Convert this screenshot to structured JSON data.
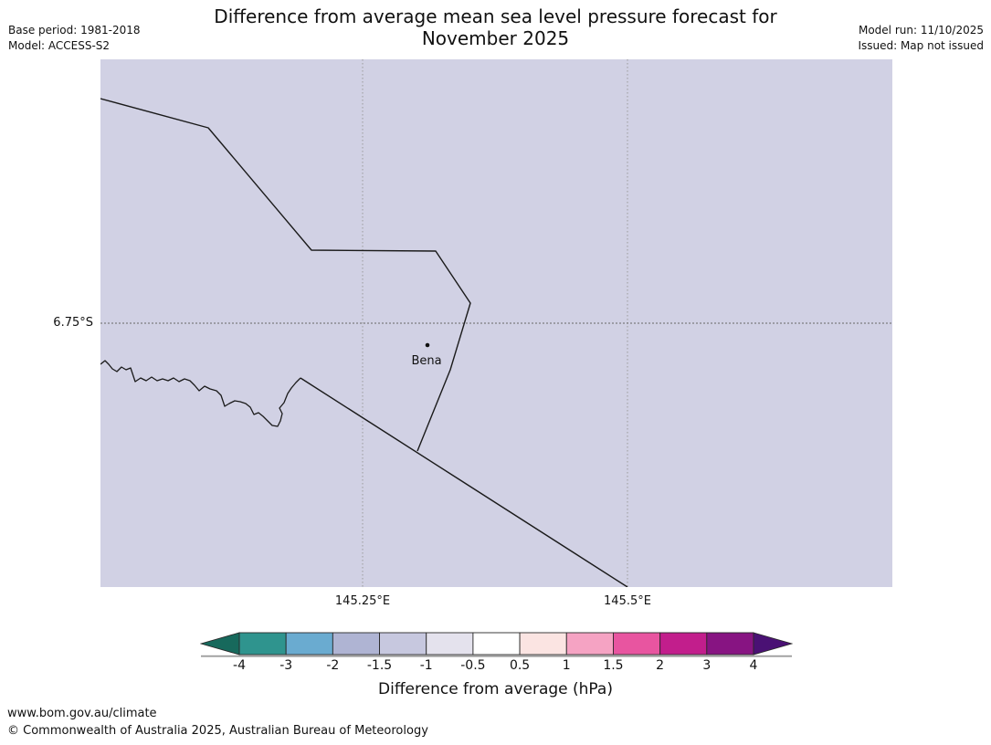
{
  "header": {
    "title_line1": "Difference from average mean sea level pressure forecast for",
    "title_line2": "November 2025",
    "base_period": "Base period: 1981-2018",
    "model": "Model: ACCESS-S2",
    "model_run": "Model run: 11/10/2025",
    "issued": "Issued: Map not issued"
  },
  "map": {
    "background_color": "#d1d1e4",
    "place_label": "Bena",
    "lat_label": "6.75°S",
    "lon_labels": [
      "145.25°E",
      "145.5°E"
    ],
    "boundary_color": "#1a1a1a",
    "gridline_color": "#888888"
  },
  "colorbar": {
    "title": "Difference from average (hPa)",
    "tick_labels": [
      "-4",
      "-3",
      "-2",
      "-1.5",
      "-1",
      "-0.5",
      "0.5",
      "1",
      "1.5",
      "2",
      "3",
      "4"
    ],
    "segment_colors": [
      "#2f948e",
      "#6aabd0",
      "#afb4d3",
      "#c7c8df",
      "#e4e2ed",
      "#ffffff",
      "#fbe4e2",
      "#f5a3c3",
      "#e855a0",
      "#c21e8c",
      "#871482"
    ],
    "left_arrow_color": "#17695c",
    "right_arrow_color": "#4a1174"
  },
  "footer": {
    "url": "www.bom.gov.au/climate",
    "copyright": "© Commonwealth of Australia 2025, Australian Bureau of Meteorology"
  }
}
